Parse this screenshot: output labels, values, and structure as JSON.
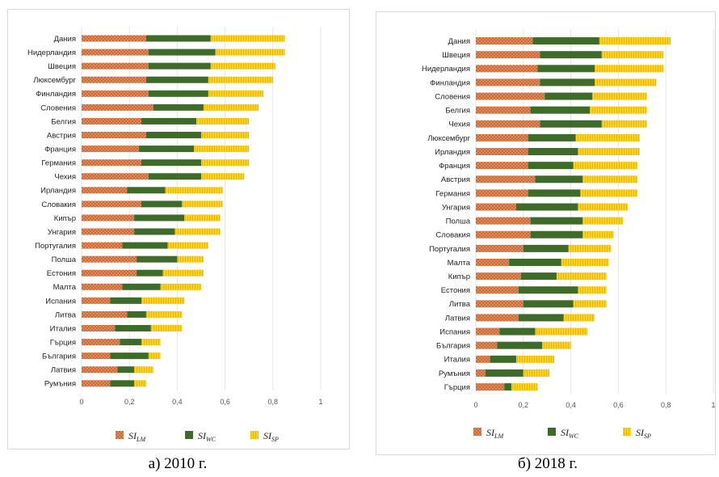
{
  "captions": {
    "a": "а) 2010 г.",
    "b": "б) 2018 г."
  },
  "legend": [
    {
      "main": "SI",
      "sub": "LM"
    },
    {
      "main": "SI",
      "sub": "WC"
    },
    {
      "main": "SI",
      "sub": "SP"
    }
  ],
  "colors": {
    "LM": "#e2936b",
    "LM_pattern": "#c55a1e",
    "WC": "#3e6b2a",
    "SP": "#ffd21f",
    "SP_pattern": "#d4a300",
    "grid": "#e6e6e6",
    "frame": "#d9d9d9"
  },
  "chart_data": [
    {
      "type": "bar",
      "orientation": "horizontal",
      "stacked": true,
      "panel": "а) 2010 г.",
      "xlim": [
        0,
        1
      ],
      "xticks": [
        "0",
        "0,2",
        "0,4",
        "0,6",
        "0,8",
        "1"
      ],
      "grid": true,
      "legend_position": "bottom",
      "categories": [
        "Дания",
        "Нидерландия",
        "Швеция",
        "Люксембург",
        "Финландия",
        "Словения",
        "Белгия",
        "Австрия",
        "Франция",
        "Германия",
        "Чехия",
        "Ирландия",
        "Словакия",
        "Кипър",
        "Унгария",
        "Португалия",
        "Полша",
        "Естония",
        "Малта",
        "Испания",
        "Литва",
        "Италия",
        "Гърция",
        "България",
        "Латвия",
        "Румъния"
      ],
      "series": [
        {
          "name": "SI_LM",
          "values": [
            0.27,
            0.28,
            0.28,
            0.27,
            0.28,
            0.3,
            0.25,
            0.27,
            0.24,
            0.25,
            0.28,
            0.19,
            0.25,
            0.22,
            0.22,
            0.17,
            0.23,
            0.23,
            0.17,
            0.12,
            0.19,
            0.14,
            0.16,
            0.12,
            0.15,
            0.12
          ]
        },
        {
          "name": "SI_WC",
          "values": [
            0.27,
            0.28,
            0.26,
            0.26,
            0.25,
            0.21,
            0.23,
            0.23,
            0.23,
            0.25,
            0.22,
            0.16,
            0.17,
            0.21,
            0.17,
            0.19,
            0.17,
            0.11,
            0.16,
            0.13,
            0.08,
            0.15,
            0.09,
            0.16,
            0.07,
            0.1
          ]
        },
        {
          "name": "SI_SP",
          "values": [
            0.31,
            0.29,
            0.27,
            0.27,
            0.23,
            0.23,
            0.22,
            0.2,
            0.23,
            0.2,
            0.18,
            0.24,
            0.17,
            0.15,
            0.19,
            0.17,
            0.11,
            0.17,
            0.17,
            0.18,
            0.15,
            0.13,
            0.08,
            0.05,
            0.08,
            0.05
          ]
        }
      ]
    },
    {
      "type": "bar",
      "orientation": "horizontal",
      "stacked": true,
      "panel": "б) 2018 г.",
      "xlim": [
        0,
        1
      ],
      "xticks": [
        "0",
        "0,2",
        "0,4",
        "0,6",
        "0,8",
        "1"
      ],
      "grid": true,
      "legend_position": "bottom",
      "categories": [
        "Дания",
        "Швеция",
        "Нидерландия",
        "Финландия",
        "Словения",
        "Белгия",
        "Чехия",
        "Люксембург",
        "Ирландия",
        "Франция",
        "Австрия",
        "Германия",
        "Унгария",
        "Полша",
        "Словакия",
        "Португалия",
        "Малта",
        "Кипър",
        "Естония",
        "Литва",
        "Латвия",
        "Испания",
        "България",
        "Италия",
        "Румъния",
        "Гърция"
      ],
      "series": [
        {
          "name": "SI_LM",
          "values": [
            0.24,
            0.27,
            0.26,
            0.27,
            0.29,
            0.23,
            0.27,
            0.22,
            0.22,
            0.22,
            0.25,
            0.22,
            0.17,
            0.23,
            0.23,
            0.2,
            0.14,
            0.19,
            0.18,
            0.2,
            0.18,
            0.1,
            0.09,
            0.06,
            0.04,
            0.12
          ]
        },
        {
          "name": "SI_WC",
          "values": [
            0.28,
            0.26,
            0.24,
            0.23,
            0.2,
            0.25,
            0.26,
            0.2,
            0.21,
            0.19,
            0.2,
            0.22,
            0.26,
            0.22,
            0.22,
            0.19,
            0.22,
            0.15,
            0.25,
            0.21,
            0.19,
            0.15,
            0.19,
            0.11,
            0.16,
            0.03
          ]
        },
        {
          "name": "SI_SP",
          "values": [
            0.3,
            0.26,
            0.29,
            0.26,
            0.23,
            0.24,
            0.19,
            0.27,
            0.26,
            0.27,
            0.23,
            0.24,
            0.21,
            0.17,
            0.13,
            0.18,
            0.2,
            0.21,
            0.12,
            0.14,
            0.13,
            0.22,
            0.12,
            0.16,
            0.11,
            0.11
          ]
        }
      ]
    }
  ]
}
